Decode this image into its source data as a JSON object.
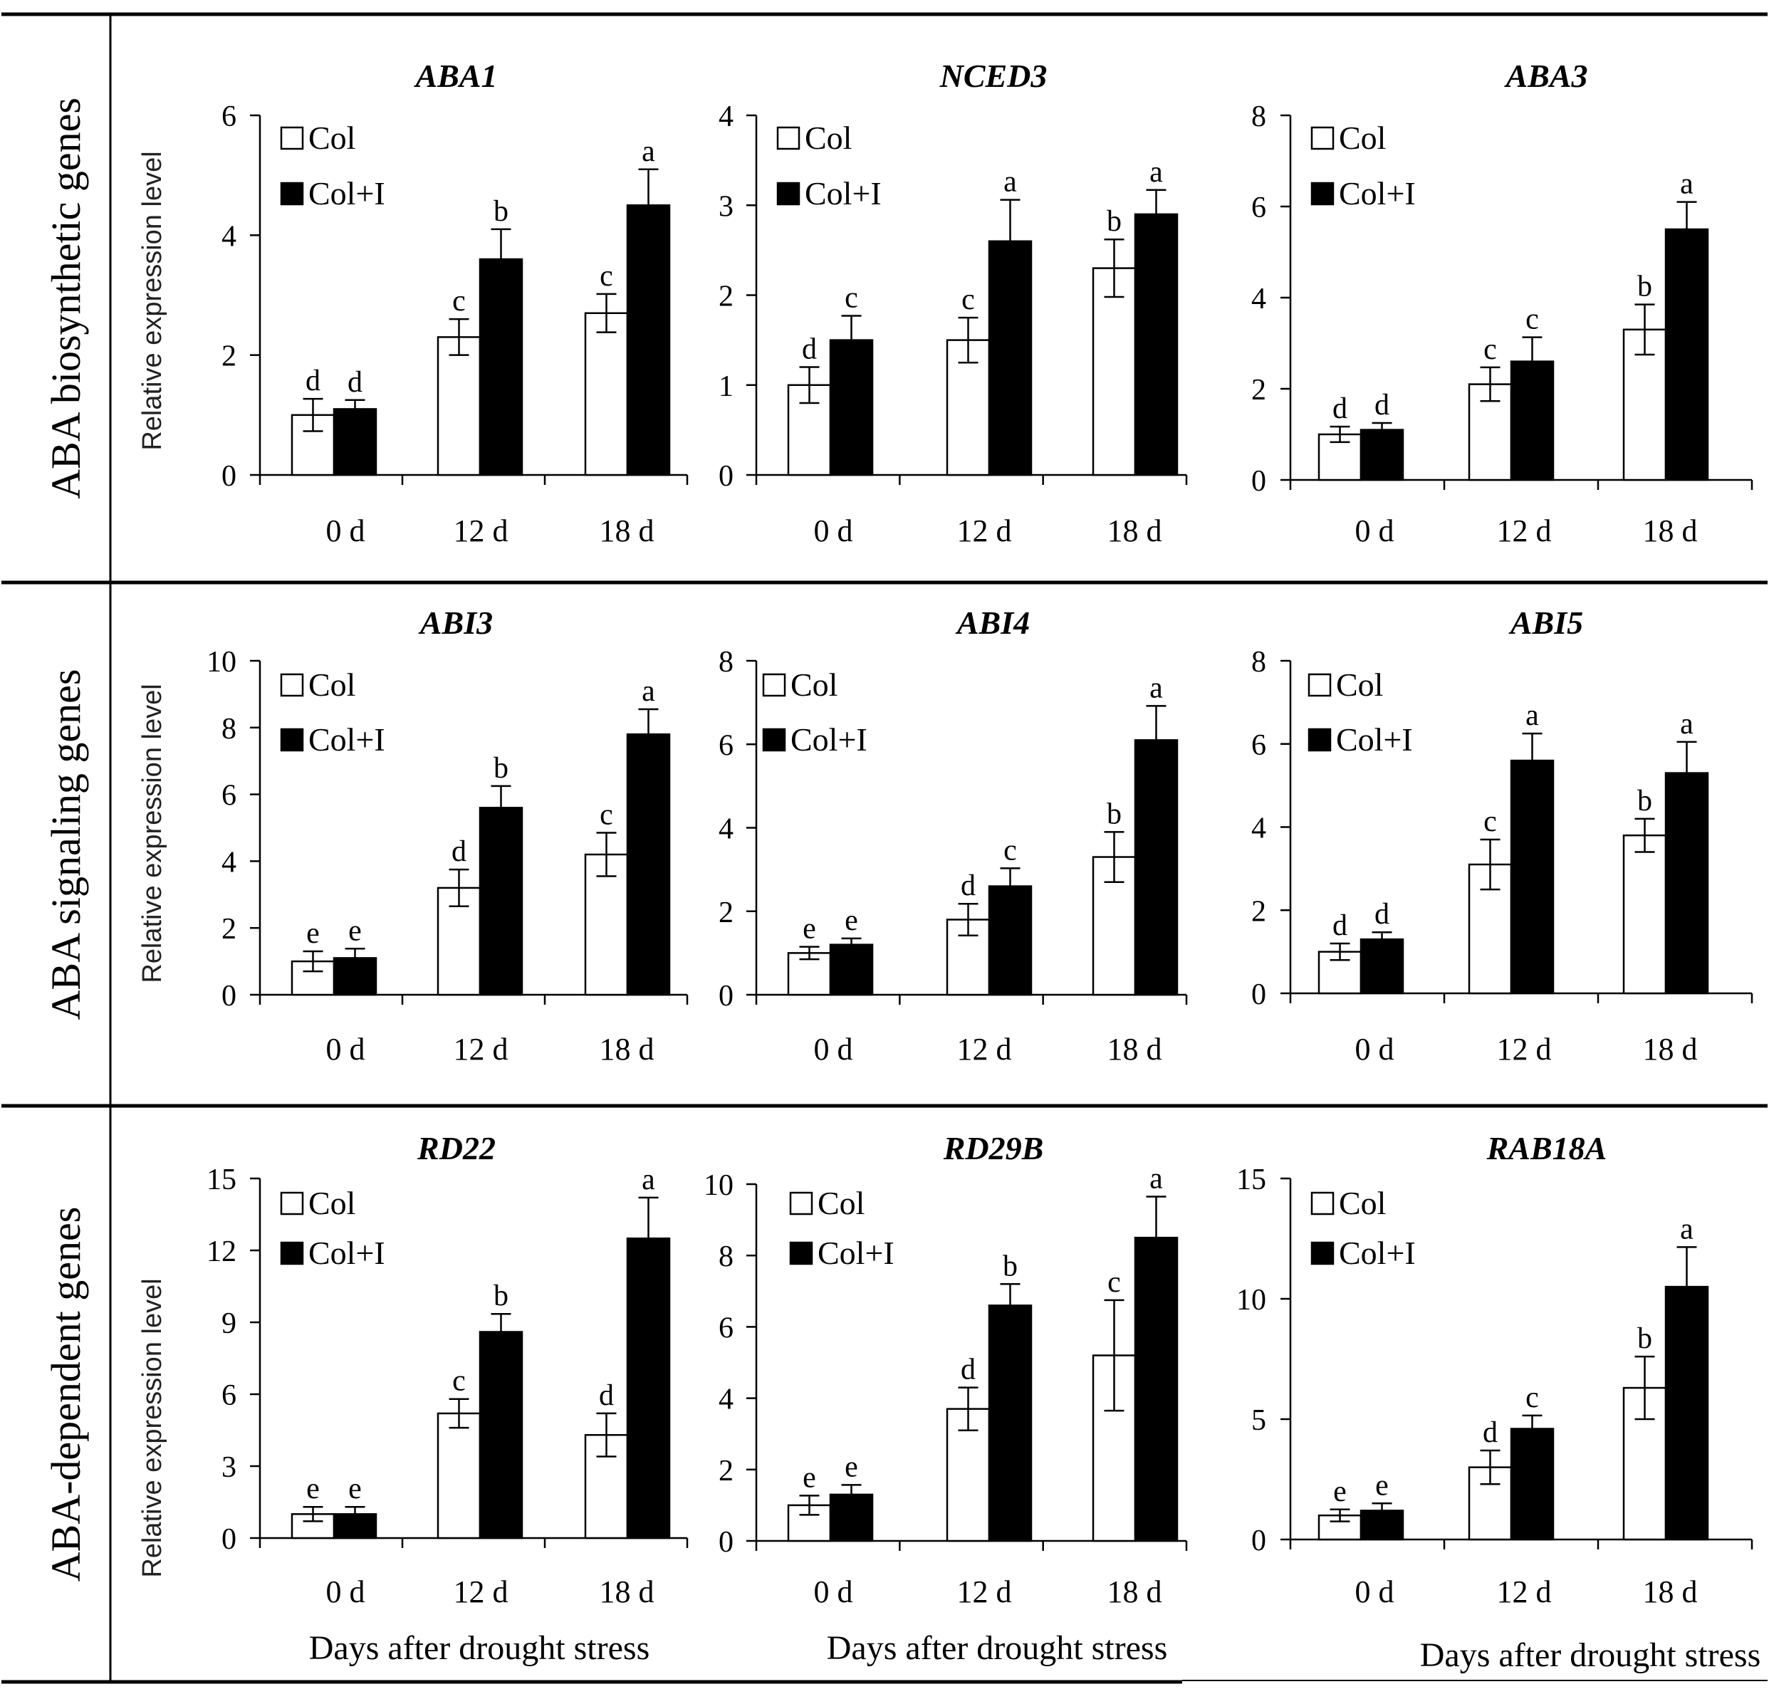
{
  "figure": {
    "legend": {
      "open_label": "Col",
      "filled_label": "Col+I"
    },
    "y_axis_label": "Relative expression level",
    "x_axis_label": "Days after drought stress",
    "rows": [
      {
        "label": "ABA biosynthetic genes"
      },
      {
        "label": "ABA signaling genes"
      },
      {
        "label": "ABA-dependent genes"
      }
    ]
  },
  "chart_data": [
    {
      "type": "bar",
      "title": "ABA1",
      "categories": [
        "0 d",
        "12 d",
        "18 d"
      ],
      "ylim": [
        0,
        6
      ],
      "yticks": [
        0,
        2,
        4,
        6
      ],
      "ylabel": "Relative expression level",
      "xlabel": "",
      "series": [
        {
          "name": "Col",
          "values": [
            1.0,
            2.3,
            2.7
          ],
          "errors": [
            0.27,
            0.3,
            0.32
          ],
          "letters": [
            "d",
            "c",
            "c"
          ]
        },
        {
          "name": "Col+I",
          "values": [
            1.1,
            3.6,
            4.5
          ],
          "errors": [
            0.15,
            0.5,
            0.6
          ],
          "letters": [
            "d",
            "b",
            "a"
          ]
        }
      ]
    },
    {
      "type": "bar",
      "title": "NCED3",
      "categories": [
        "0 d",
        "12 d",
        "18 d"
      ],
      "ylim": [
        0,
        4
      ],
      "yticks": [
        0,
        1,
        2,
        3,
        4
      ],
      "ylabel": "",
      "xlabel": "",
      "series": [
        {
          "name": "Col",
          "values": [
            1.0,
            1.5,
            2.3
          ],
          "errors": [
            0.2,
            0.25,
            0.32
          ],
          "letters": [
            "d",
            "c",
            "b"
          ]
        },
        {
          "name": "Col+I",
          "values": [
            1.5,
            2.6,
            2.9
          ],
          "errors": [
            0.27,
            0.46,
            0.27
          ],
          "letters": [
            "c",
            "a",
            "a"
          ]
        }
      ]
    },
    {
      "type": "bar",
      "title": "ABA3",
      "categories": [
        "0 d",
        "12 d",
        "18 d"
      ],
      "ylim": [
        0,
        8
      ],
      "yticks": [
        0,
        2,
        4,
        6,
        8
      ],
      "ylabel": "",
      "xlabel": "",
      "series": [
        {
          "name": "Col",
          "values": [
            1.0,
            2.1,
            3.3
          ],
          "errors": [
            0.17,
            0.37,
            0.55
          ],
          "letters": [
            "d",
            "c",
            "b"
          ]
        },
        {
          "name": "Col+I",
          "values": [
            1.1,
            2.6,
            5.5
          ],
          "errors": [
            0.15,
            0.53,
            0.6
          ],
          "letters": [
            "d",
            "c",
            "a"
          ]
        }
      ]
    },
    {
      "type": "bar",
      "title": "ABI3",
      "categories": [
        "0 d",
        "12 d",
        "18 d"
      ],
      "ylim": [
        0,
        10
      ],
      "yticks": [
        0,
        2,
        4,
        6,
        8,
        10
      ],
      "ylabel": "Relative expression level",
      "xlabel": "",
      "series": [
        {
          "name": "Col",
          "values": [
            1.0,
            3.2,
            4.2
          ],
          "errors": [
            0.3,
            0.55,
            0.65
          ],
          "letters": [
            "e",
            "d",
            "c"
          ]
        },
        {
          "name": "Col+I",
          "values": [
            1.1,
            5.6,
            7.8
          ],
          "errors": [
            0.28,
            0.65,
            0.75
          ],
          "letters": [
            "e",
            "b",
            "a"
          ]
        }
      ]
    },
    {
      "type": "bar",
      "title": "ABI4",
      "categories": [
        "0 d",
        "12 d",
        "18 d"
      ],
      "ylim": [
        0,
        8
      ],
      "yticks": [
        0,
        2,
        4,
        6,
        8
      ],
      "ylabel": "",
      "xlabel": "",
      "series": [
        {
          "name": "Col",
          "values": [
            1.0,
            1.8,
            3.3
          ],
          "errors": [
            0.15,
            0.38,
            0.6
          ],
          "letters": [
            "e",
            "d",
            "b"
          ]
        },
        {
          "name": "Col+I",
          "values": [
            1.2,
            2.6,
            6.1
          ],
          "errors": [
            0.15,
            0.43,
            0.82
          ],
          "letters": [
            "e",
            "c",
            "a"
          ]
        }
      ]
    },
    {
      "type": "bar",
      "title": "ABI5",
      "categories": [
        "0 d",
        "12 d",
        "18 d"
      ],
      "ylim": [
        0,
        8
      ],
      "yticks": [
        0,
        2,
        4,
        6,
        8
      ],
      "ylabel": "",
      "xlabel": "",
      "series": [
        {
          "name": "Col",
          "values": [
            1.0,
            3.1,
            3.8
          ],
          "errors": [
            0.2,
            0.6,
            0.4
          ],
          "letters": [
            "d",
            "c",
            "b"
          ]
        },
        {
          "name": "Col+I",
          "values": [
            1.3,
            5.6,
            5.3
          ],
          "errors": [
            0.17,
            0.65,
            0.75
          ],
          "letters": [
            "d",
            "a",
            "a"
          ]
        }
      ]
    },
    {
      "type": "bar",
      "title": "RD22",
      "categories": [
        "0 d",
        "12 d",
        "18 d"
      ],
      "ylim": [
        0,
        15
      ],
      "yticks": [
        0,
        3,
        6,
        9,
        12,
        15
      ],
      "ylabel": "Relative expression level",
      "xlabel": "Days after drought stress",
      "series": [
        {
          "name": "Col",
          "values": [
            1.0,
            5.2,
            4.3
          ],
          "errors": [
            0.3,
            0.6,
            0.9
          ],
          "letters": [
            "e",
            "c",
            "d"
          ]
        },
        {
          "name": "Col+I",
          "values": [
            1.0,
            8.6,
            12.5
          ],
          "errors": [
            0.3,
            0.75,
            1.7
          ],
          "letters": [
            "e",
            "b",
            "a"
          ]
        }
      ]
    },
    {
      "type": "bar",
      "title": "RD29B",
      "categories": [
        "0 d",
        "12 d",
        "18 d"
      ],
      "ylim": [
        0,
        10
      ],
      "yticks": [
        0,
        2,
        4,
        6,
        8,
        10
      ],
      "ylabel": "",
      "xlabel": "Days after drought stress",
      "series": [
        {
          "name": "Col",
          "values": [
            1.0,
            3.7,
            5.2
          ],
          "errors": [
            0.27,
            0.6,
            1.55
          ],
          "letters": [
            "e",
            "d",
            "c"
          ]
        },
        {
          "name": "Col+I",
          "values": [
            1.3,
            6.6,
            8.5
          ],
          "errors": [
            0.27,
            0.6,
            1.15
          ],
          "letters": [
            "e",
            "b",
            "a"
          ]
        }
      ]
    },
    {
      "type": "bar",
      "title": "RAB18A",
      "categories": [
        "0 d",
        "12 d",
        "18 d"
      ],
      "ylim": [
        0,
        15
      ],
      "yticks": [
        0,
        5,
        10,
        15
      ],
      "ylabel": "",
      "xlabel": "Days after drought stress",
      "series": [
        {
          "name": "Col",
          "values": [
            1.0,
            3.0,
            6.3
          ],
          "errors": [
            0.25,
            0.7,
            1.3
          ],
          "letters": [
            "e",
            "d",
            "b"
          ]
        },
        {
          "name": "Col+I",
          "values": [
            1.2,
            4.6,
            10.5
          ],
          "errors": [
            0.3,
            0.55,
            1.65
          ],
          "letters": [
            "e",
            "c",
            "a"
          ]
        }
      ]
    }
  ]
}
